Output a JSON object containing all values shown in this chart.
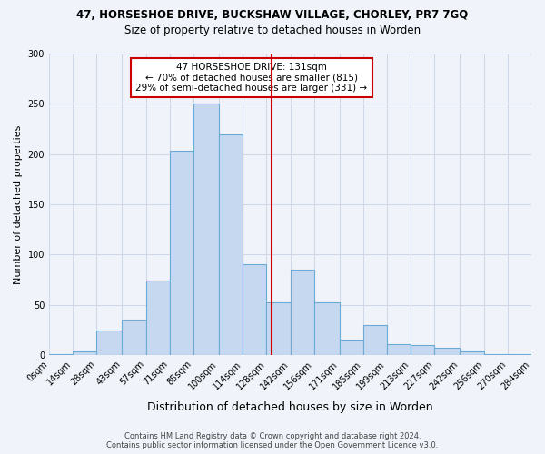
{
  "title": "47, HORSESHOE DRIVE, BUCKSHAW VILLAGE, CHORLEY, PR7 7GQ",
  "subtitle": "Size of property relative to detached houses in Worden",
  "xlabel": "Distribution of detached houses by size in Worden",
  "ylabel": "Number of detached properties",
  "bar_labels": [
    "0sqm",
    "14sqm",
    "28sqm",
    "43sqm",
    "57sqm",
    "71sqm",
    "85sqm",
    "100sqm",
    "114sqm",
    "128sqm",
    "142sqm",
    "156sqm",
    "171sqm",
    "185sqm",
    "199sqm",
    "213sqm",
    "227sqm",
    "242sqm",
    "256sqm",
    "270sqm",
    "284sqm"
  ],
  "bin_edges": [
    0,
    14,
    28,
    43,
    57,
    71,
    85,
    100,
    114,
    128,
    142,
    156,
    171,
    185,
    199,
    213,
    227,
    242,
    256,
    270,
    284
  ],
  "bar_heights": [
    1,
    4,
    24,
    35,
    74,
    203,
    250,
    220,
    90,
    52,
    85,
    52,
    15,
    30,
    11,
    10,
    7,
    4,
    1,
    1
  ],
  "bar_color": "#c5d8f0",
  "bar_edge_color": "#6aaad4",
  "vline_x": 131,
  "vline_color": "#cc0000",
  "annotation_line1": "47 HORSESHOE DRIVE: 131sqm",
  "annotation_line2": "← 70% of detached houses are smaller (815)",
  "annotation_line3": "29% of semi-detached houses are larger (331) →",
  "annotation_box_color": "#cc0000",
  "grid_color": "#d0d8e8",
  "bg_color": "#f0f4fa",
  "ylim": [
    0,
    300
  ],
  "yticks": [
    0,
    50,
    100,
    150,
    200,
    250,
    300
  ],
  "footer_line1": "Contains HM Land Registry data © Crown copyright and database right 2024.",
  "footer_line2": "Contains public sector information licensed under the Open Government Licence v3.0."
}
